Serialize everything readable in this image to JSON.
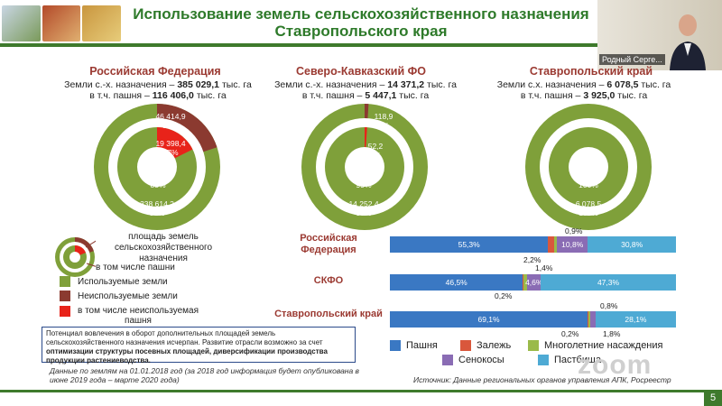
{
  "header": {
    "title_line1": "Использование земель сельскохозяйственного назначения",
    "title_line2": "Ставропольского края"
  },
  "video": {
    "name": "Родный Серге..."
  },
  "panels": [
    {
      "title": "Российская Федерация",
      "line1_prefix": "Земли с.-х. назначения – ",
      "line1_value": "385 029,1",
      "line1_suffix": " тыс. га",
      "line2_prefix": "в т.ч. пашня – ",
      "line2_value": "116 406,0",
      "line2_suffix": " тыс. га",
      "outer_unused": "46 414,9",
      "outer_unused_pct": "12%",
      "inner_unused": "19 398,4",
      "inner_unused_pct": "17%",
      "inner_used": "97 007,6",
      "inner_used_pct": "83%",
      "outer_used": "338 614,2",
      "outer_used_pct": "88%"
    },
    {
      "title": "Северо-Кавказский ФО",
      "line1_prefix": "Земли с.-х. назначения – ",
      "line1_value": "14 371,2",
      "line1_suffix": " тыс. га",
      "line2_prefix": "в т.ч. пашня – ",
      "line2_value": "5 447,1",
      "line2_suffix": " тыс. га",
      "outer_unused": "118,9",
      "outer_unused_pct": "1%",
      "inner_unused": "52,2",
      "inner_unused_pct": "1%",
      "inner_used": "5 394,9",
      "inner_used_pct": "99%",
      "outer_used": "14 252,4",
      "outer_used_pct": "99%"
    },
    {
      "title": "Ставропольский край",
      "line1_prefix": "Земли с.х. назначения – ",
      "line1_value": "6 078,5",
      "line1_suffix": " тыс. га",
      "line2_prefix": "в т.ч. пашня – ",
      "line2_value": "3 925,0",
      "line2_suffix": " тыс. га",
      "inner_used": "3 925,0",
      "inner_used_pct": "100%",
      "outer_used": "6 078,5",
      "outer_used_pct": "100%"
    }
  ],
  "donut_legend": {
    "label1": "площадь земель",
    "label2": "сельскохозяйственного",
    "label3": "назначения",
    "label4": "в том числе пашни",
    "used": "Используемые земли",
    "unused": "Неиспользуемые земли",
    "unused_plow1": "в том числе неиспользуемая",
    "unused_plow2": "пашня"
  },
  "note": {
    "text1": "Потенциал вовлечения в оборот дополнительных площадей земель сельскохозяйственного назначения исчерпан. Развитие отрасли возможно за счет ",
    "bold": "оптимизации структуры посевных площадей, диверсификации производства продукции растениеводства."
  },
  "footer_note": "Данные по землям на 01.01.2018 год (за 2018 год информация будет опубликована в июне 2019 года – марте 2020 года)",
  "source": "Источник: Данные региональных органов управления АПК, Росреестр",
  "page_number": "5",
  "zoom_watermark": "zoom",
  "chart_data": {
    "type": "bar",
    "stacked": true,
    "orientation": "horizontal",
    "categories": [
      "Российская Федерация",
      "СКФО",
      "Ставропольский край"
    ],
    "series": [
      {
        "name": "Пашня",
        "values": [
          55.3,
          46.5,
          69.1
        ],
        "color": "#3a78c3"
      },
      {
        "name": "Залежь",
        "values": [
          2.2,
          0.2,
          0.2
        ],
        "color": "#d9573c"
      },
      {
        "name": "Многолетние насаждения",
        "values": [
          0.9,
          1.4,
          0.8
        ],
        "color": "#9aba4a"
      },
      {
        "name": "Сенокосы",
        "values": [
          10.8,
          4.6,
          1.8
        ],
        "color": "#8a6cb4"
      },
      {
        "name": "Пастбища",
        "values": [
          30.8,
          47.3,
          28.1
        ],
        "color": "#4eaad4"
      }
    ],
    "labels": {
      "rf": [
        "55,3%",
        "2,2%",
        "0,9%",
        "10,8%",
        "30,8%"
      ],
      "skfo": [
        "46,5%",
        "0,2%",
        "1,4%",
        "4,6%",
        "47,3%"
      ],
      "sk": [
        "69,1%",
        "0,2%",
        "0,8%",
        "1,8%",
        "28,1%"
      ]
    }
  }
}
